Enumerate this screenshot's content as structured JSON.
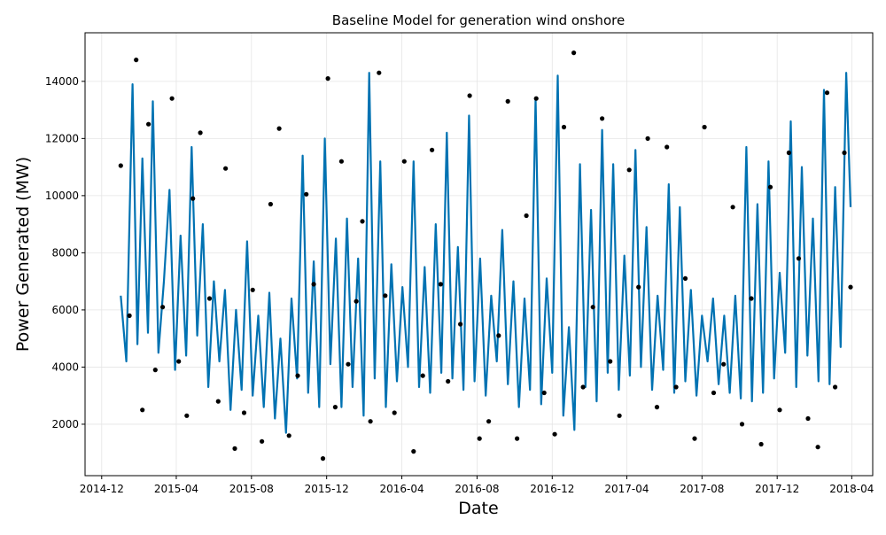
{
  "chart_data": {
    "type": "line",
    "title": "Baseline Model for generation wind onshore",
    "xlabel": "Date",
    "ylabel": "Power Generated (MW)",
    "x_ticks": [
      "2014-12",
      "2015-04",
      "2015-08",
      "2015-12",
      "2016-04",
      "2016-08",
      "2016-12",
      "2017-04",
      "2017-08",
      "2017-12",
      "2018-04"
    ],
    "y_ticks": [
      2000,
      4000,
      6000,
      8000,
      10000,
      12000,
      14000
    ],
    "xlim": [
      "2014-11-04",
      "2018-05-05"
    ],
    "ylim": [
      200,
      15700
    ],
    "grid": true,
    "colors": {
      "forecast_line": "#0072B2",
      "observed_points": "#000000"
    },
    "series": [
      {
        "kind": "scatter",
        "x": [
          "2015-01-01",
          "2015-01-15",
          "2015-01-26",
          "2015-02-05",
          "2015-02-15",
          "2015-02-26",
          "2015-03-10",
          "2015-03-25",
          "2015-04-05",
          "2015-04-18",
          "2015-04-28",
          "2015-05-10",
          "2015-05-25",
          "2015-06-08",
          "2015-06-20",
          "2015-07-05",
          "2015-07-20",
          "2015-08-03",
          "2015-08-18",
          "2015-09-01",
          "2015-09-15",
          "2015-10-01",
          "2015-10-15",
          "2015-10-29",
          "2015-11-10",
          "2015-11-25",
          "2015-12-03",
          "2015-12-15",
          "2015-12-25",
          "2016-01-05",
          "2016-01-18",
          "2016-01-28",
          "2016-02-10",
          "2016-02-24",
          "2016-03-05",
          "2016-03-20",
          "2016-04-05",
          "2016-04-20",
          "2016-05-05",
          "2016-05-20",
          "2016-06-03",
          "2016-06-15",
          "2016-07-05",
          "2016-07-20",
          "2016-08-05",
          "2016-08-20",
          "2016-09-05",
          "2016-09-20",
          "2016-10-05",
          "2016-10-20",
          "2016-11-05",
          "2016-11-18",
          "2016-12-05",
          "2016-12-20",
          "2017-01-05",
          "2017-01-20",
          "2017-02-05",
          "2017-02-20",
          "2017-03-05",
          "2017-03-20",
          "2017-04-05",
          "2017-04-20",
          "2017-05-05",
          "2017-05-20",
          "2017-06-05",
          "2017-06-20",
          "2017-07-05",
          "2017-07-20",
          "2017-08-05",
          "2017-08-20",
          "2017-09-05",
          "2017-09-20",
          "2017-10-05",
          "2017-10-20",
          "2017-11-05",
          "2017-11-20",
          "2017-12-05",
          "2017-12-20",
          "2018-01-05",
          "2018-01-20",
          "2018-02-05",
          "2018-02-20",
          "2018-03-05",
          "2018-03-20",
          "2018-03-30"
        ],
        "y": [
          11050,
          5800,
          14750,
          2500,
          12500,
          3900,
          6100,
          13400,
          4200,
          2300,
          9900,
          12200,
          6400,
          2800,
          10950,
          1150,
          2400,
          6700,
          1400,
          9700,
          12350,
          1600,
          3700,
          10050,
          6900,
          800,
          14100,
          2600,
          11200,
          4100,
          6300,
          9100,
          2100,
          14300,
          6500,
          2400,
          11200,
          1050,
          3700,
          11600,
          6900,
          3500,
          5500,
          13500,
          1500,
          2100,
          5100,
          13300,
          1500,
          9300,
          13400,
          3100,
          1650,
          12400,
          15000,
          3300,
          6100,
          12700,
          4200,
          2300,
          10900,
          6800,
          12000,
          2600,
          11700,
          3300,
          7100,
          1500,
          12400,
          3100,
          4100,
          9600,
          2000,
          6400,
          1300,
          10300,
          2500,
          11500,
          7800,
          2200,
          1200,
          13600,
          3300,
          11500,
          6800
        ],
        "name": ""
      },
      {
        "kind": "line",
        "x": [
          "2015-01-01",
          "2015-01-10",
          "2015-01-20",
          "2015-01-28",
          "2015-02-05",
          "2015-02-14",
          "2015-02-22",
          "2015-03-03",
          "2015-03-12",
          "2015-03-21",
          "2015-03-30",
          "2015-04-08",
          "2015-04-17",
          "2015-04-26",
          "2015-05-05",
          "2015-05-14",
          "2015-05-23",
          "2015-06-01",
          "2015-06-10",
          "2015-06-19",
          "2015-06-28",
          "2015-07-07",
          "2015-07-16",
          "2015-07-25",
          "2015-08-03",
          "2015-08-12",
          "2015-08-21",
          "2015-08-30",
          "2015-09-08",
          "2015-09-17",
          "2015-09-26",
          "2015-10-05",
          "2015-10-14",
          "2015-10-23",
          "2015-11-01",
          "2015-11-10",
          "2015-11-19",
          "2015-11-28",
          "2015-12-07",
          "2015-12-16",
          "2015-12-25",
          "2016-01-03",
          "2016-01-12",
          "2016-01-21",
          "2016-01-30",
          "2016-02-08",
          "2016-02-17",
          "2016-02-26",
          "2016-03-06",
          "2016-03-15",
          "2016-03-24",
          "2016-04-02",
          "2016-04-11",
          "2016-04-20",
          "2016-04-29",
          "2016-05-08",
          "2016-05-17",
          "2016-05-26",
          "2016-06-04",
          "2016-06-13",
          "2016-06-22",
          "2016-07-01",
          "2016-07-10",
          "2016-07-19",
          "2016-07-28",
          "2016-08-06",
          "2016-08-15",
          "2016-08-24",
          "2016-09-02",
          "2016-09-11",
          "2016-09-20",
          "2016-09-29",
          "2016-10-08",
          "2016-10-17",
          "2016-10-26",
          "2016-11-04",
          "2016-11-13",
          "2016-11-22",
          "2016-12-01",
          "2016-12-10",
          "2016-12-19",
          "2016-12-28",
          "2017-01-06",
          "2017-01-15",
          "2017-01-24",
          "2017-02-02",
          "2017-02-11",
          "2017-02-20",
          "2017-03-01",
          "2017-03-10",
          "2017-03-19",
          "2017-03-28",
          "2017-04-06",
          "2017-04-15",
          "2017-04-24",
          "2017-05-03",
          "2017-05-12",
          "2017-05-21",
          "2017-05-30",
          "2017-06-08",
          "2017-06-17",
          "2017-06-26",
          "2017-07-05",
          "2017-07-14",
          "2017-07-23",
          "2017-08-01",
          "2017-08-10",
          "2017-08-19",
          "2017-08-28",
          "2017-09-06",
          "2017-09-15",
          "2017-09-24",
          "2017-10-03",
          "2017-10-12",
          "2017-10-21",
          "2017-10-30",
          "2017-11-08",
          "2017-11-17",
          "2017-11-26",
          "2017-12-05",
          "2017-12-14",
          "2017-12-23",
          "2018-01-01",
          "2018-01-10",
          "2018-01-19",
          "2018-01-28",
          "2018-02-06",
          "2018-02-15",
          "2018-02-24",
          "2018-03-05",
          "2018-03-14",
          "2018-03-23",
          "2018-03-30"
        ],
        "y": [
          6500,
          4200,
          13900,
          4800,
          11300,
          5200,
          13300,
          4500,
          7000,
          10200,
          3900,
          8600,
          4400,
          11700,
          5100,
          9000,
          3300,
          7000,
          4200,
          6700,
          2500,
          6000,
          3200,
          8400,
          3000,
          5800,
          2600,
          6600,
          2200,
          5000,
          1700,
          6400,
          3600,
          11400,
          3100,
          7700,
          2600,
          12000,
          4100,
          8500,
          2600,
          9200,
          3300,
          7800,
          2300,
          14300,
          3600,
          11200,
          2600,
          7600,
          3500,
          6800,
          4000,
          11200,
          3300,
          7500,
          3100,
          9000,
          3800,
          12200,
          3600,
          8200,
          3200,
          12800,
          3500,
          7800,
          3000,
          6500,
          4200,
          8800,
          3400,
          7000,
          2600,
          6400,
          3200,
          13400,
          2700,
          7100,
          3800,
          14200,
          2300,
          5400,
          1800,
          11100,
          3300,
          9500,
          2800,
          12300,
          3800,
          11100,
          3200,
          7900,
          3700,
          11600,
          4000,
          8900,
          3200,
          6500,
          3900,
          10400,
          3100,
          9600,
          3500,
          6700,
          3000,
          5800,
          4200,
          6400,
          3400,
          5800,
          3100,
          6500,
          2900,
          11700,
          2800,
          9700,
          3100,
          11200,
          3600,
          7300,
          4500,
          12600,
          3300,
          11000,
          4400,
          9200,
          3500,
          13700,
          3400,
          10300,
          4700,
          14300,
          9600
        ],
        "name": ""
      }
    ]
  }
}
